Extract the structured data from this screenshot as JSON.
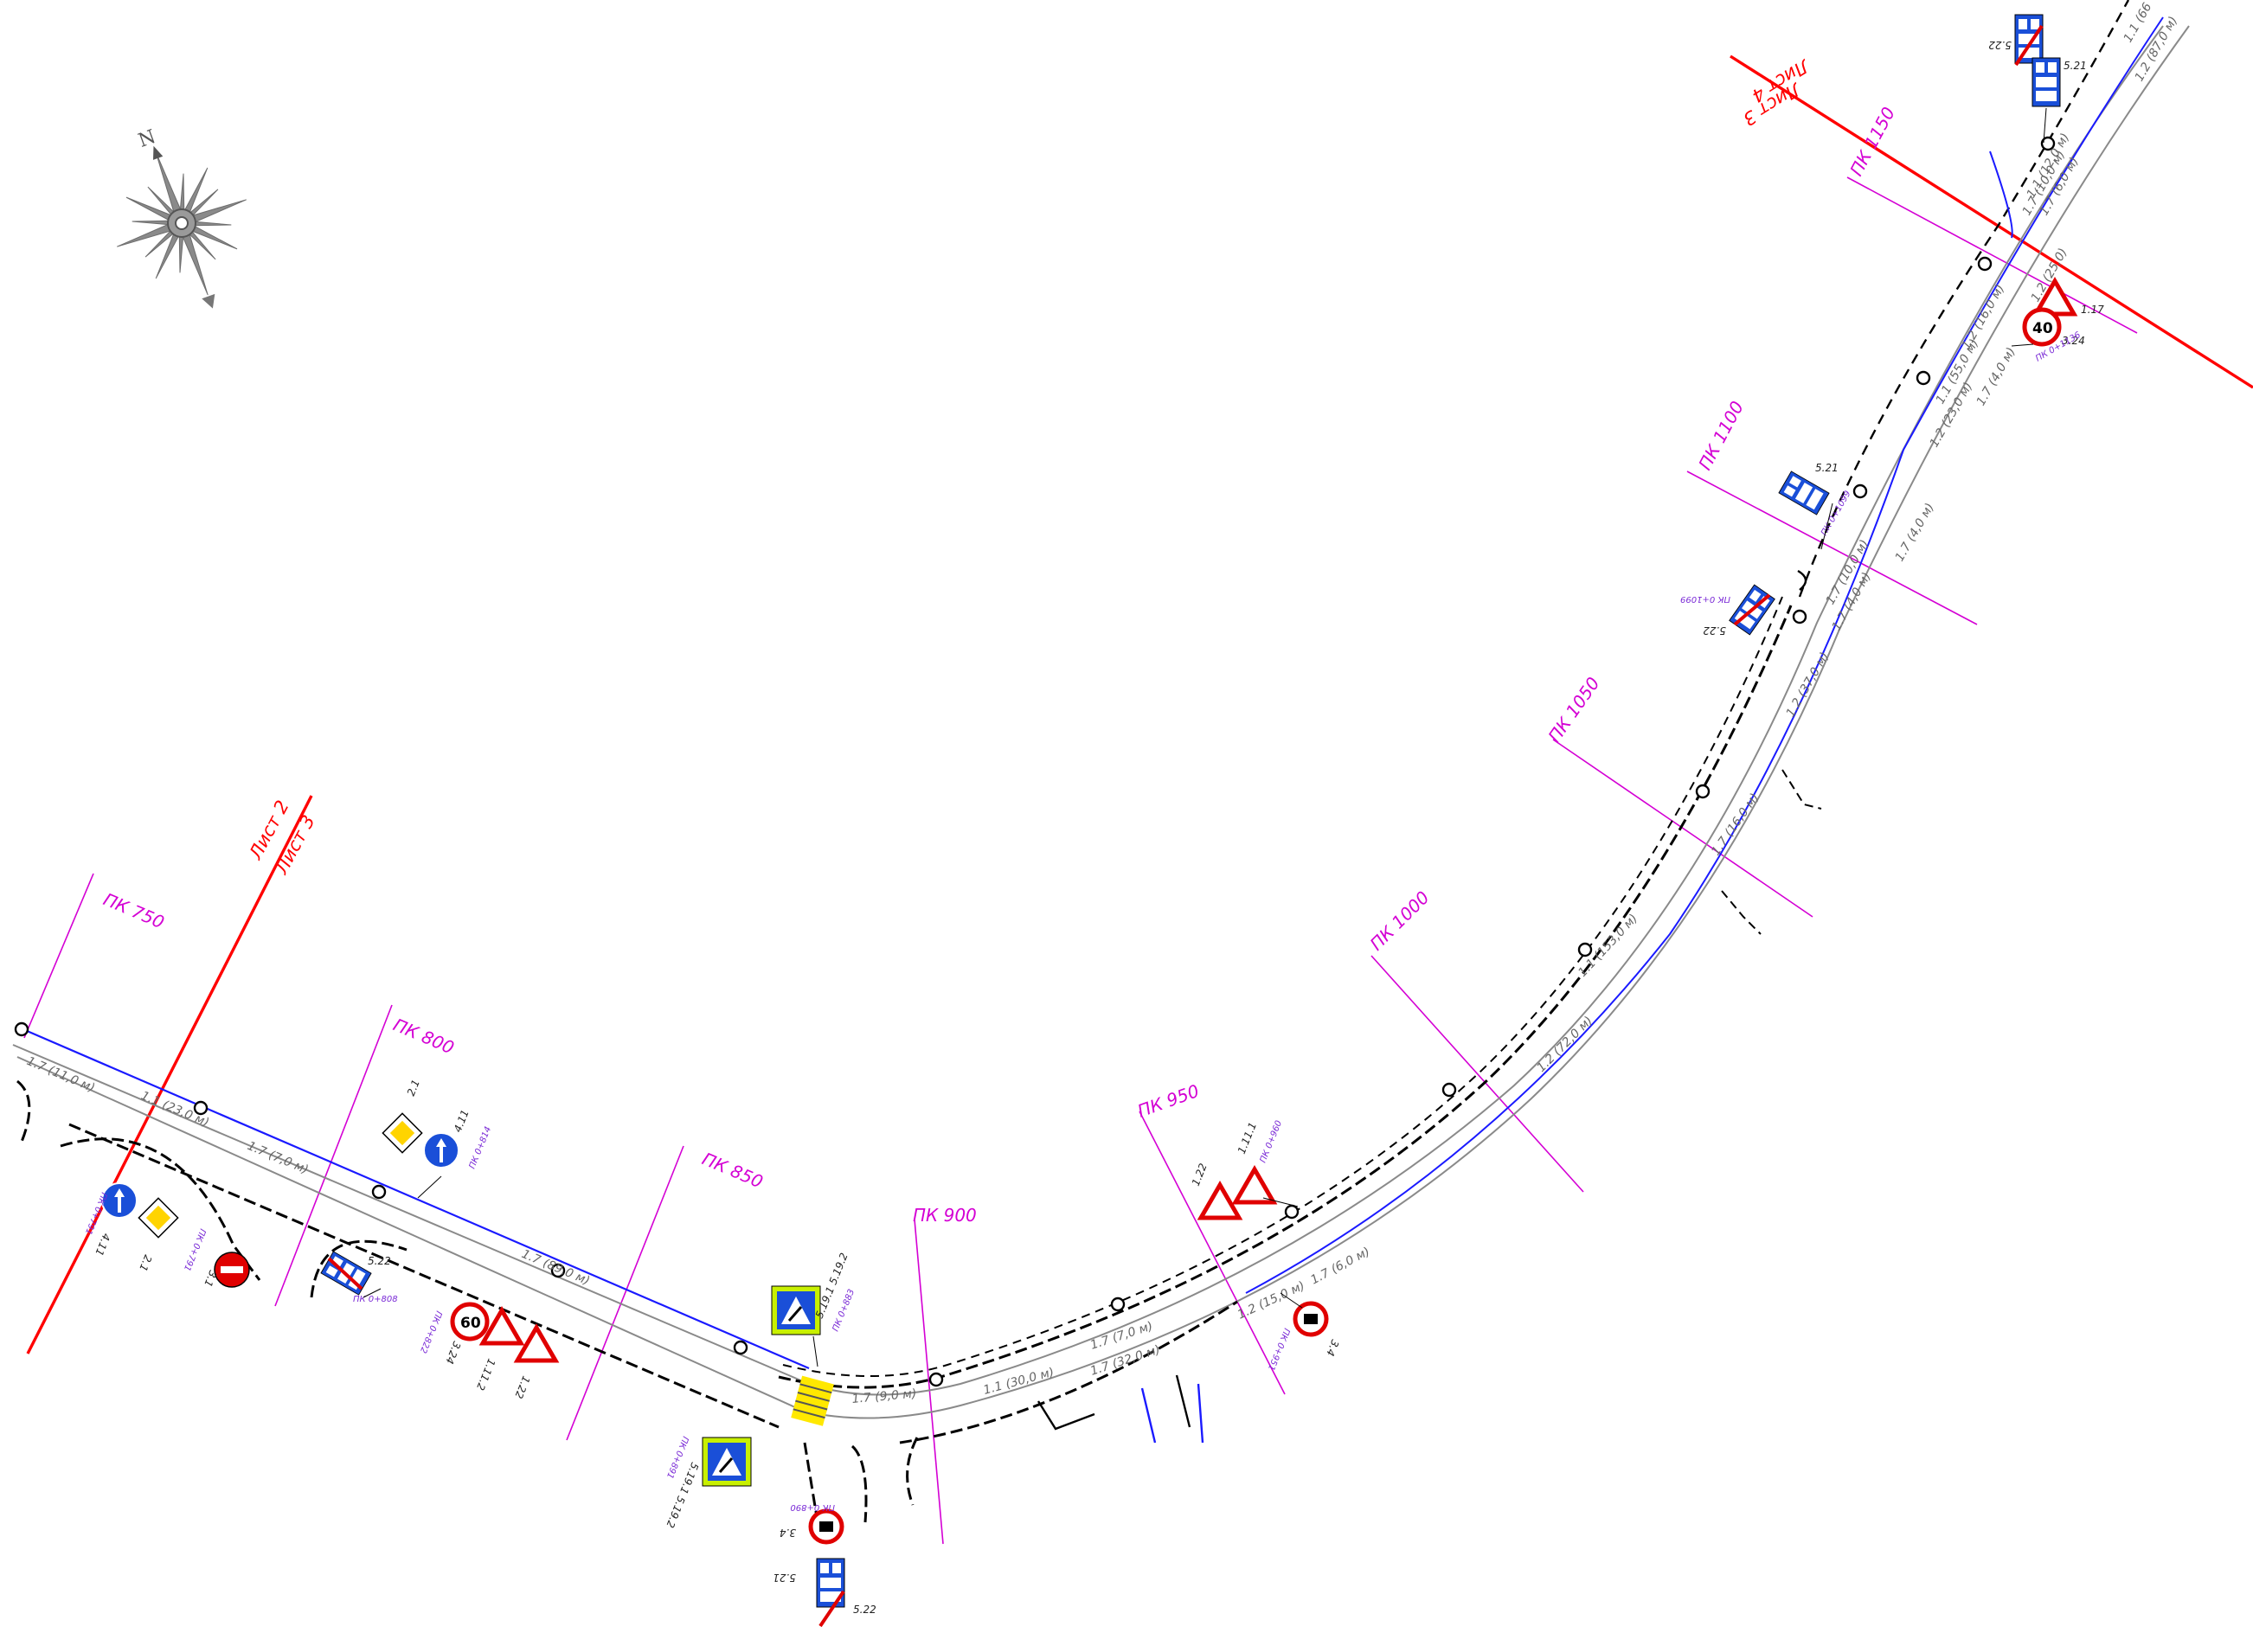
{
  "compass": {
    "north_label": "N"
  },
  "sheets": [
    {
      "label": "Лист 2"
    },
    {
      "label": "Лист 3"
    },
    {
      "label": "Лист 4"
    },
    {
      "label": "Лист 3"
    }
  ],
  "pickets": [
    "ПК 750",
    "ПК 800",
    "ПК 850",
    "ПК 900",
    "ПК 950",
    "ПК 1000",
    "ПК 1050",
    "ПК 1100",
    "ПК 1150"
  ],
  "markings": [
    "1.7 (11,0 м)",
    "1.1 (23,0 м)",
    "1.7 (7,0 м)",
    "1.7 (89,0 м)",
    "1.7 (9,0 м)",
    "1.1 (30,0 м)",
    "1.7 (7,0 м)",
    "1.7 (32,0 м)",
    "1.2 (15,0 м)",
    "1.7 (6,0 м)",
    "1.2 (72,0 м)",
    "1.1 (153,0 м)",
    "1.7 (16,0 м)",
    "1.2 (37,0 м)",
    "1.7 (10,0 м)",
    "1.7 (4,0 м)",
    "1.7 (4,0 м)",
    "1.2 (23,0 м)",
    "1.1 (55,0 м)",
    "1.7 (4,0 м)",
    "1.2 (16,0 м)",
    "1.2 (25,0)",
    "1.7 (10,0 м)",
    "1.7 (6,0 м)",
    "1.1 (12,0 м)",
    "1.2 (87,0 м)",
    "1.1 (66"
  ],
  "signs": {
    "s_411_left": {
      "code": "4.11",
      "ref": "ПК 0+791"
    },
    "s_21_left": {
      "code": "2.1"
    },
    "s_31": {
      "code": "3.1",
      "ref": "ПК 0+791"
    },
    "s_21_right": {
      "code": "2.1"
    },
    "s_411_right": {
      "code": "4.11",
      "ref": "ПК 0+814"
    },
    "s_522_a": {
      "code": "5.22",
      "ref": "ПК 0+808"
    },
    "s_324_a": {
      "code": "3.24",
      "speed": "60",
      "ref": "ПК 0+822"
    },
    "s_112_a": {
      "code": "1.11.2"
    },
    "s_122_a": {
      "code": "1.22"
    },
    "s_5195_a": {
      "code": "5.19.1\n5.19.2",
      "ref": "ПК 0+883"
    },
    "s_5195_b": {
      "code": "5.19.1\n5.19.2",
      "ref": "ПК 0+891"
    },
    "s_34_a": {
      "code": "3.4",
      "ref": "ПК 0+890"
    },
    "s_521_a": {
      "code": "5.21"
    },
    "s_522_b": {
      "code": "5.22"
    },
    "s_122_b": {
      "code": "1.22"
    },
    "s_1111_b": {
      "code": "1.11.1",
      "ref": "ПК 0+960"
    },
    "s_34_b": {
      "code": "3.4",
      "ref": "ПК 0+951"
    },
    "s_522_c": {
      "code": "5.22",
      "ref": "ПК 0+1099"
    },
    "s_521_b": {
      "code": "5.21",
      "ref": "ПК 0+1099"
    },
    "s_324_b": {
      "code": "3.24",
      "speed": "40",
      "ref": "ПК 0+1136"
    },
    "s_117": {
      "code": "1.17"
    },
    "s_522_d": {
      "code": "5.22"
    },
    "s_521_c": {
      "code": "5.21"
    }
  }
}
